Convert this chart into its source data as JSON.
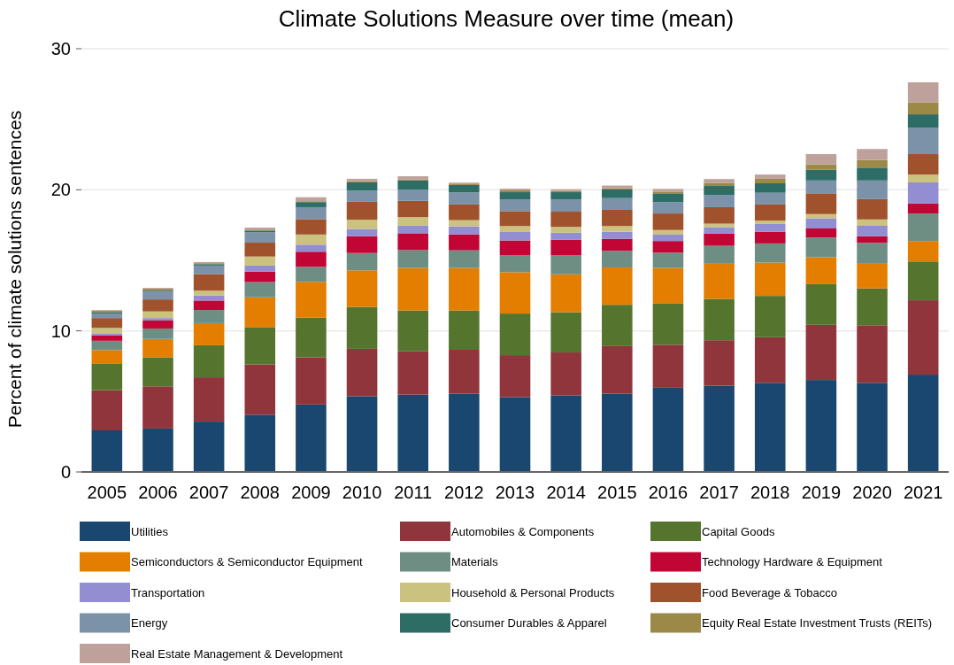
{
  "chart_data": {
    "type": "bar",
    "title": "Climate Solutions Measure over time (mean)",
    "ylabel": "Percent of climate solutions sentences",
    "stacked": true,
    "grid": "y",
    "legend": "bottom",
    "ylim": [
      0,
      30
    ],
    "yticks": [
      0,
      10,
      20,
      30
    ],
    "categories": [
      "2005",
      "2006",
      "2007",
      "2008",
      "2009",
      "2010",
      "2011",
      "2012",
      "2013",
      "2014",
      "2015",
      "2016",
      "2017",
      "2018",
      "2019",
      "2020",
      "2021"
    ],
    "series": [
      {
        "name": "Utilities",
        "color": "#1a476f",
        "values": [
          2.95,
          3.08,
          3.57,
          4.06,
          4.78,
          5.37,
          5.48,
          5.56,
          5.31,
          5.43,
          5.56,
          5.97,
          6.11,
          6.32,
          6.52,
          6.32,
          6.9
        ]
      },
      {
        "name": "Automobiles & Components",
        "color": "#90353b",
        "values": [
          2.85,
          2.99,
          3.14,
          3.56,
          3.35,
          3.36,
          3.07,
          3.1,
          2.97,
          3.04,
          3.36,
          3.05,
          3.23,
          3.23,
          3.91,
          4.08,
          5.27
        ]
      },
      {
        "name": "Capital Goods",
        "color": "#55752f",
        "values": [
          1.86,
          2.06,
          2.27,
          2.65,
          2.81,
          2.97,
          2.9,
          2.79,
          2.95,
          2.85,
          2.93,
          2.91,
          2.93,
          2.93,
          2.88,
          2.61,
          2.75
        ]
      },
      {
        "name": "Semiconductors & Semiconductor Equipment",
        "color": "#e37e00",
        "values": [
          0.98,
          1.3,
          1.57,
          2.11,
          2.54,
          2.59,
          3.01,
          3.01,
          2.93,
          2.69,
          2.65,
          2.53,
          2.49,
          2.36,
          1.91,
          1.75,
          1.45
        ]
      },
      {
        "name": "Materials",
        "color": "#6e8e84",
        "values": [
          0.66,
          0.74,
          0.93,
          1.08,
          1.06,
          1.23,
          1.27,
          1.25,
          1.21,
          1.36,
          1.17,
          1.08,
          1.27,
          1.36,
          1.4,
          1.48,
          1.95
        ]
      },
      {
        "name": "Technology Hardware & Equipment",
        "color": "#c10534",
        "values": [
          0.38,
          0.57,
          0.67,
          0.74,
          1.07,
          1.19,
          1.19,
          1.12,
          1.04,
          1.08,
          0.85,
          0.83,
          0.87,
          0.83,
          0.64,
          0.47,
          0.71
        ]
      },
      {
        "name": "Transportation",
        "color": "#938dd2",
        "values": [
          0.15,
          0.17,
          0.36,
          0.43,
          0.5,
          0.51,
          0.55,
          0.58,
          0.6,
          0.51,
          0.51,
          0.46,
          0.44,
          0.55,
          0.72,
          0.74,
          1.5
        ]
      },
      {
        "name": "Household & Personal Products",
        "color": "#cac27e",
        "values": [
          0.38,
          0.47,
          0.34,
          0.64,
          0.72,
          0.66,
          0.6,
          0.44,
          0.42,
          0.41,
          0.4,
          0.32,
          0.26,
          0.24,
          0.3,
          0.45,
          0.55
        ]
      },
      {
        "name": "Food Beverage & Tobacco",
        "color": "#a0522d",
        "values": [
          0.7,
          0.85,
          1.18,
          0.99,
          1.09,
          1.27,
          1.15,
          1.11,
          1.06,
          1.08,
          1.15,
          1.17,
          1.17,
          1.14,
          1.47,
          1.44,
          1.45
        ]
      },
      {
        "name": "Energy",
        "color": "#7b92a8",
        "values": [
          0.32,
          0.59,
          0.6,
          0.73,
          0.85,
          0.79,
          0.78,
          0.85,
          0.81,
          0.85,
          0.83,
          0.81,
          0.87,
          0.83,
          0.91,
          1.32,
          1.86
        ]
      },
      {
        "name": "Consumer Durables & Apparel",
        "color": "#2d6d66",
        "values": [
          0.1,
          0.05,
          0.1,
          0.12,
          0.36,
          0.59,
          0.66,
          0.53,
          0.53,
          0.53,
          0.61,
          0.62,
          0.63,
          0.67,
          0.76,
          0.91,
          0.96
        ]
      },
      {
        "name": "Equity Real Estate Investment Trusts (REITs)",
        "color": "#9c8847",
        "values": [
          0.12,
          0.12,
          0.07,
          0.07,
          0.06,
          0.09,
          0.06,
          0.06,
          0.13,
          0.09,
          0.09,
          0.12,
          0.22,
          0.32,
          0.38,
          0.55,
          0.85
        ]
      },
      {
        "name": "Real Estate Management & Development",
        "color": "#bfa19c",
        "values": [
          0.03,
          0.05,
          0.08,
          0.14,
          0.28,
          0.16,
          0.24,
          0.11,
          0.12,
          0.12,
          0.19,
          0.19,
          0.27,
          0.3,
          0.73,
          0.77,
          1.42
        ]
      }
    ]
  }
}
